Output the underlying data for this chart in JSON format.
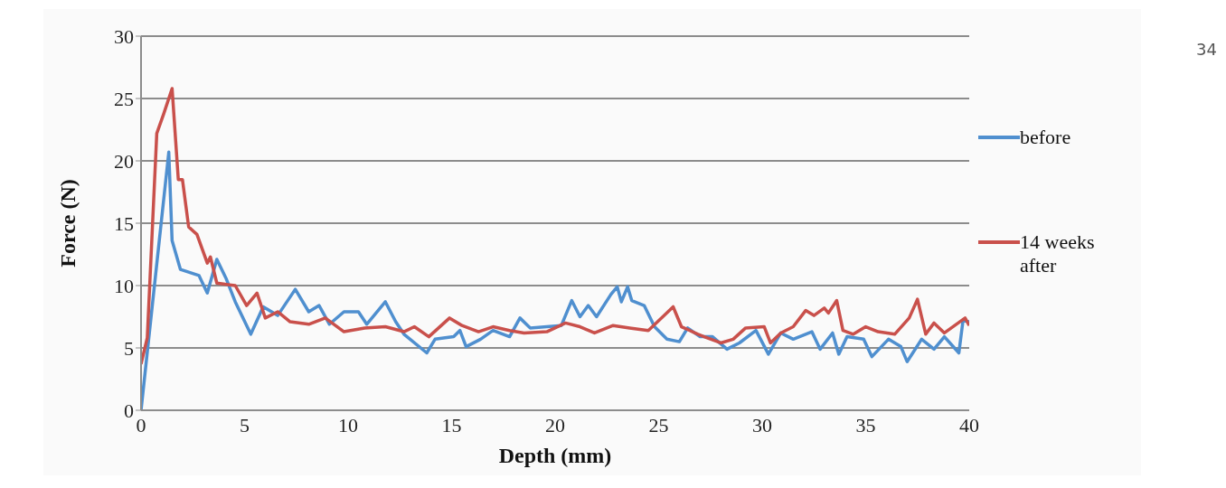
{
  "chart_data": {
    "type": "line",
    "xlabel": "Depth (mm)",
    "ylabel": "Force (N)",
    "xlim": [
      0,
      40
    ],
    "xticks": [
      0,
      5,
      10,
      15,
      20,
      25,
      30,
      35,
      40
    ],
    "ylim": [
      0,
      30
    ],
    "yticks": [
      0,
      5,
      10,
      15,
      20,
      25,
      30
    ],
    "grid": "y",
    "legend": "right",
    "marker": "none",
    "line_style": "solid",
    "annotations": [
      "34"
    ],
    "series": [
      {
        "name": "before",
        "color": "#4f8fcf",
        "x": [
          0,
          1.34,
          1.5,
          1.9,
          2.8,
          3.2,
          3.66,
          4.1,
          4.55,
          5.3,
          5.9,
          6.6,
          7.45,
          8.1,
          8.6,
          9.1,
          9.8,
          10.5,
          10.9,
          11.8,
          12.3,
          12.7,
          13.8,
          14.2,
          15.1,
          15.4,
          15.7,
          16.4,
          17.0,
          17.8,
          18.3,
          18.8,
          19.6,
          20.3,
          20.8,
          21.2,
          21.6,
          22.0,
          22.7,
          23.0,
          23.2,
          23.5,
          23.7,
          24.3,
          24.8,
          25.4,
          26.0,
          26.4,
          27.0,
          27.6,
          28.3,
          28.9,
          29.7,
          30.3,
          30.9,
          31.5,
          32.4,
          32.8,
          33.4,
          33.7,
          34.1,
          34.9,
          35.3,
          36.1,
          36.7,
          37.0,
          37.7,
          38.3,
          38.8,
          39.5,
          39.7,
          40
        ],
        "values": [
          0,
          20.7,
          13.6,
          11.3,
          10.8,
          9.4,
          12.1,
          10.6,
          8.7,
          6.1,
          8.3,
          7.6,
          9.7,
          7.9,
          8.4,
          6.9,
          7.9,
          7.9,
          6.9,
          8.7,
          7.1,
          6.1,
          4.6,
          5.7,
          5.9,
          6.4,
          5.1,
          5.7,
          6.4,
          5.9,
          7.4,
          6.6,
          6.7,
          6.8,
          8.8,
          7.5,
          8.4,
          7.5,
          9.3,
          9.9,
          8.7,
          9.9,
          8.8,
          8.4,
          6.7,
          5.7,
          5.5,
          6.6,
          5.9,
          5.9,
          4.9,
          5.4,
          6.4,
          4.5,
          6.2,
          5.7,
          6.3,
          4.9,
          6.2,
          4.5,
          5.9,
          5.7,
          4.3,
          5.7,
          5.1,
          3.9,
          5.7,
          4.9,
          5.9,
          4.6,
          7.2,
          7.1
        ]
      },
      {
        "name": "14 weeks after",
        "color": "#c9504b",
        "x": [
          0,
          0.3,
          0.76,
          1.1,
          1.5,
          1.8,
          2.0,
          2.3,
          2.7,
          3.2,
          3.35,
          3.66,
          4.55,
          5.1,
          5.6,
          6.0,
          6.6,
          7.2,
          8.1,
          8.9,
          9.8,
          10.8,
          11.8,
          12.7,
          13.2,
          13.9,
          14.9,
          15.5,
          16.3,
          17.0,
          17.8,
          18.5,
          19.6,
          20.5,
          21.2,
          21.9,
          22.8,
          23.6,
          24.5,
          25.2,
          25.7,
          26.1,
          26.9,
          27.2,
          28.0,
          28.6,
          29.2,
          30.1,
          30.4,
          30.9,
          31.5,
          32.1,
          32.5,
          33.0,
          33.2,
          33.6,
          33.9,
          34.4,
          35.0,
          35.6,
          36.4,
          37.1,
          37.5,
          37.9,
          38.3,
          38.8,
          39.3,
          39.8,
          40
        ],
        "values": [
          3.7,
          5.8,
          22.2,
          23.8,
          25.8,
          18.5,
          18.5,
          14.7,
          14.1,
          11.8,
          12.3,
          10.2,
          10.0,
          8.4,
          9.4,
          7.4,
          7.9,
          7.1,
          6.9,
          7.4,
          6.3,
          6.6,
          6.7,
          6.3,
          6.7,
          5.9,
          7.4,
          6.8,
          6.3,
          6.7,
          6.4,
          6.2,
          6.3,
          7.0,
          6.7,
          6.2,
          6.8,
          6.6,
          6.4,
          7.5,
          8.3,
          6.7,
          6.1,
          5.9,
          5.4,
          5.7,
          6.6,
          6.7,
          5.4,
          6.2,
          6.7,
          8.0,
          7.6,
          8.2,
          7.8,
          8.8,
          6.4,
          6.1,
          6.7,
          6.3,
          6.1,
          7.4,
          8.9,
          6.1,
          7.0,
          6.2,
          6.8,
          7.4,
          6.8
        ]
      }
    ]
  }
}
